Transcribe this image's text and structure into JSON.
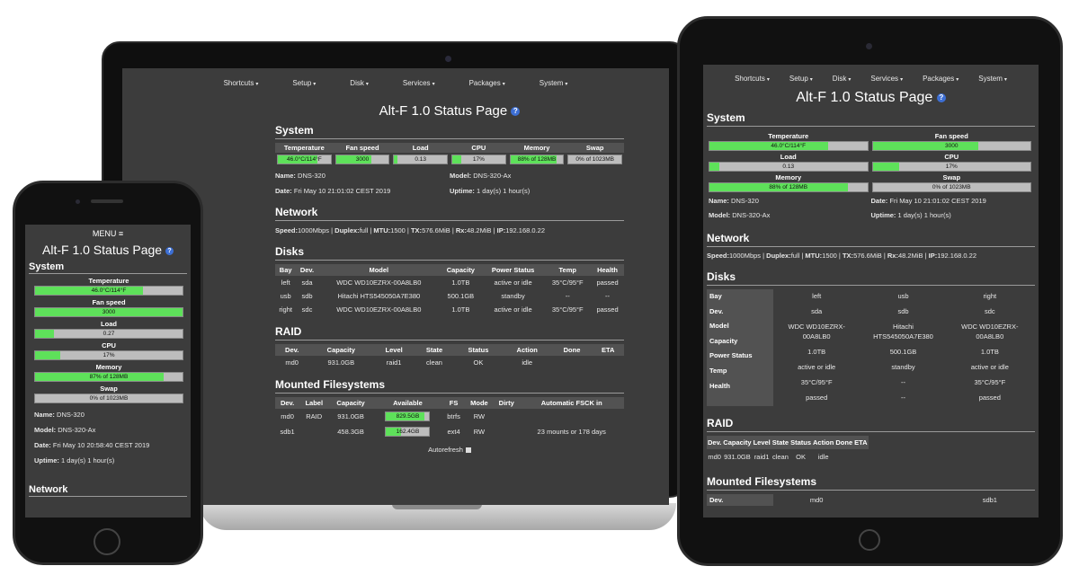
{
  "app": {
    "title": "Alt-F 1.0 Status Page",
    "help_icon": "?",
    "menu_label": "MENU ≡",
    "autorefresh": "Autorefresh"
  },
  "nav": [
    "Shortcuts",
    "Setup",
    "Disk",
    "Services",
    "Packages",
    "System"
  ],
  "sections": {
    "system": "System",
    "network": "Network",
    "disks": "Disks",
    "raid": "RAID",
    "mounted": "Mounted Filesystems"
  },
  "system": {
    "stats": [
      {
        "label": "Temperature",
        "text": "46.0°C/114°F",
        "fill": 0.75
      },
      {
        "label": "Fan speed",
        "text": "3000",
        "fill": 0.67
      },
      {
        "label": "Load",
        "text": "0.13",
        "fill": 0.06
      },
      {
        "label": "CPU",
        "text": "17%",
        "fill": 0.17
      },
      {
        "label": "Memory",
        "text": "88% of 128MB",
        "fill": 0.88
      },
      {
        "label": "Swap",
        "text": "0% of 1023MB",
        "fill": 0.0
      }
    ],
    "name_label": "Name:",
    "name": "DNS-320",
    "model_label": "Model:",
    "model": "DNS-320-Ax",
    "date_label": "Date:",
    "date": "Fri May 10 21:01:02 CEST 2019",
    "uptime_label": "Uptime:",
    "uptime": "1 day(s) 1 hour(s)"
  },
  "phone_system": {
    "stats": [
      {
        "label": "Temperature",
        "text": "46.0°C/114°F",
        "fill": 0.73
      },
      {
        "label": "Fan speed",
        "text": "3000",
        "fill": 1.0
      },
      {
        "label": "Load",
        "text": "0.27",
        "fill": 0.13
      },
      {
        "label": "CPU",
        "text": "17%",
        "fill": 0.17
      },
      {
        "label": "Memory",
        "text": "87% of 128MB",
        "fill": 0.87
      },
      {
        "label": "Swap",
        "text": "0% of 1023MB",
        "fill": 0.0
      }
    ],
    "date": "Fri May 10 20:58:40 CEST 2019"
  },
  "network": {
    "speed_label": "Speed:",
    "speed": "1000Mbps",
    "duplex_label": "Duplex:",
    "duplex": "full",
    "mtu_label": "MTU:",
    "mtu": "1500",
    "tx_label": "TX:",
    "tx": "576.6MiB",
    "rx_label": "Rx:",
    "rx": "48.2MiB",
    "ip_label": "IP:",
    "ip": "192.168.0.22"
  },
  "disks": {
    "headers": [
      "Bay",
      "Dev.",
      "Model",
      "Capacity",
      "Power Status",
      "Temp",
      "Health"
    ],
    "rows": [
      [
        "left",
        "sda",
        "WDC WD10EZRX-00A8LB0",
        "1.0TB",
        "active or idle",
        "35°C/95°F",
        "passed"
      ],
      [
        "usb",
        "sdb",
        "Hitachi HTS545050A7E380",
        "500.1GB",
        "standby",
        "--",
        "--"
      ],
      [
        "right",
        "sdc",
        "WDC WD10EZRX-00A8LB0",
        "1.0TB",
        "active or idle",
        "35°C/95°F",
        "passed"
      ]
    ],
    "tablet_cols": [
      [
        "left",
        "sda",
        "WDC WD10EZRX-",
        "00A8LB0",
        "1.0TB",
        "active or idle",
        "35°C/95°F",
        "passed"
      ],
      [
        "usb",
        "sdb",
        "Hitachi",
        "HTS545050A7E380",
        "500.1GB",
        "standby",
        "--",
        "--"
      ],
      [
        "right",
        "sdc",
        "WDC WD10EZRX-",
        "00A8LB0",
        "1.0TB",
        "active or idle",
        "35°C/95°F",
        "passed"
      ]
    ]
  },
  "raid": {
    "headers": [
      "Dev.",
      "Capacity",
      "Level",
      "State",
      "Status",
      "Action",
      "Done",
      "ETA"
    ],
    "rows": [
      [
        "md0",
        "931.0GB",
        "raid1",
        "clean",
        "OK",
        "idle",
        "",
        ""
      ]
    ]
  },
  "mounted": {
    "headers": [
      "Dev.",
      "Label",
      "Capacity",
      "Available",
      "FS",
      "Mode",
      "Dirty",
      "Automatic FSCK in"
    ],
    "rows": [
      {
        "dev": "md0",
        "label": "RAID",
        "capacity": "931.0GB",
        "available": "829.5GB",
        "avail_fill": 0.89,
        "fs": "btrfs",
        "mode": "RW",
        "dirty": "",
        "fsck": ""
      },
      {
        "dev": "sdb1",
        "label": "",
        "capacity": "458.3GB",
        "available": "162.4GB",
        "avail_fill": 0.35,
        "fs": "ext4",
        "mode": "RW",
        "dirty": "",
        "fsck": "23 mounts or 178 days"
      }
    ],
    "tablet_peek": {
      "label": "Dev.",
      "v1": "md0",
      "v2": "sdb1"
    }
  },
  "colors": {
    "screen_bg": "#3c3c3c",
    "bar_fill": "#5ee15a",
    "bar_track": "#bdbdbd",
    "header_bg": "#525252"
  }
}
